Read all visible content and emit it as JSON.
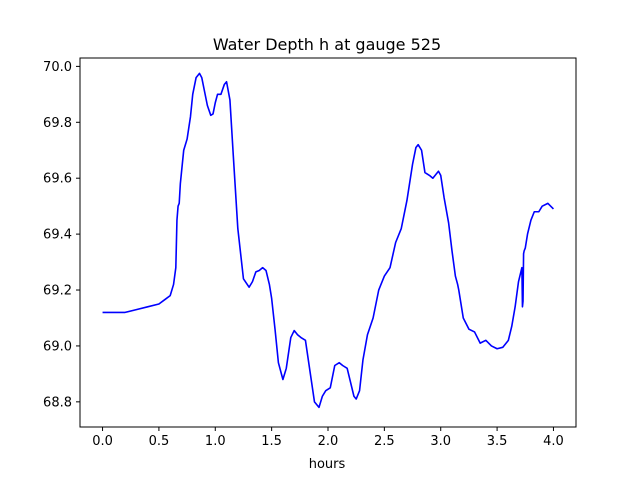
{
  "chart_data": {
    "type": "line",
    "title": "Water Depth h at gauge 525",
    "xlabel": "hours",
    "ylabel": "",
    "xlim": [
      -0.2,
      4.2
    ],
    "ylim": [
      68.71,
      70.03
    ],
    "xticks": [
      0.0,
      0.5,
      1.0,
      1.5,
      2.0,
      2.5,
      3.0,
      3.5,
      4.0
    ],
    "xtick_labels": [
      "0.0",
      "0.5",
      "1.0",
      "1.5",
      "2.0",
      "2.5",
      "3.0",
      "3.5",
      "4.0"
    ],
    "yticks": [
      68.8,
      69.0,
      69.2,
      69.4,
      69.6,
      69.8,
      70.0
    ],
    "ytick_labels": [
      "68.8",
      "69.0",
      "69.2",
      "69.4",
      "69.6",
      "69.8",
      "70.0"
    ],
    "grid": false,
    "series": [
      {
        "color": "#0000ff",
        "x": [
          0.0,
          0.1,
          0.2,
          0.3,
          0.4,
          0.5,
          0.55,
          0.6,
          0.63,
          0.65,
          0.66,
          0.67,
          0.68,
          0.69,
          0.7,
          0.72,
          0.75,
          0.78,
          0.8,
          0.83,
          0.86,
          0.88,
          0.9,
          0.93,
          0.96,
          0.98,
          1.0,
          1.02,
          1.05,
          1.08,
          1.1,
          1.13,
          1.16,
          1.2,
          1.25,
          1.3,
          1.33,
          1.36,
          1.39,
          1.42,
          1.45,
          1.48,
          1.5,
          1.53,
          1.56,
          1.6,
          1.63,
          1.67,
          1.7,
          1.73,
          1.76,
          1.8,
          1.84,
          1.88,
          1.92,
          1.95,
          1.98,
          2.02,
          2.06,
          2.1,
          2.13,
          2.17,
          2.2,
          2.23,
          2.25,
          2.28,
          2.31,
          2.35,
          2.4,
          2.45,
          2.5,
          2.55,
          2.6,
          2.65,
          2.7,
          2.75,
          2.78,
          2.8,
          2.83,
          2.86,
          2.9,
          2.93,
          2.96,
          2.98,
          3.0,
          3.03,
          3.07,
          3.1,
          3.13,
          3.15,
          3.16,
          3.2,
          3.25,
          3.3,
          3.35,
          3.4,
          3.45,
          3.5,
          3.55,
          3.6,
          3.63,
          3.66,
          3.69,
          3.72,
          3.725,
          3.73,
          3.735,
          3.74,
          3.75,
          3.77,
          3.8,
          3.83,
          3.87,
          3.9,
          3.95,
          4.0
        ],
        "y": [
          69.12,
          69.12,
          69.12,
          69.13,
          69.14,
          69.15,
          69.165,
          69.18,
          69.22,
          69.28,
          69.45,
          69.5,
          69.51,
          69.58,
          69.62,
          69.7,
          69.74,
          69.82,
          69.9,
          69.96,
          69.975,
          69.96,
          69.92,
          69.86,
          69.825,
          69.83,
          69.87,
          69.9,
          69.9,
          69.935,
          69.945,
          69.88,
          69.68,
          69.42,
          69.24,
          69.21,
          69.23,
          69.265,
          69.27,
          69.28,
          69.27,
          69.22,
          69.17,
          69.06,
          68.94,
          68.88,
          68.92,
          69.03,
          69.055,
          69.04,
          69.03,
          69.02,
          68.91,
          68.8,
          68.78,
          68.82,
          68.84,
          68.85,
          68.93,
          68.94,
          68.93,
          68.92,
          68.87,
          68.82,
          68.81,
          68.84,
          68.95,
          69.04,
          69.1,
          69.2,
          69.25,
          69.28,
          69.37,
          69.42,
          69.52,
          69.65,
          69.71,
          69.72,
          69.7,
          69.62,
          69.61,
          69.6,
          69.615,
          69.625,
          69.61,
          69.53,
          69.44,
          69.34,
          69.25,
          69.22,
          69.2,
          69.1,
          69.06,
          69.05,
          69.01,
          69.02,
          69.0,
          68.99,
          68.995,
          69.02,
          69.07,
          69.14,
          69.23,
          69.28,
          69.14,
          69.16,
          69.33,
          69.34,
          69.35,
          69.4,
          69.45,
          69.48,
          69.48,
          69.5,
          69.51,
          69.49
        ]
      }
    ]
  }
}
